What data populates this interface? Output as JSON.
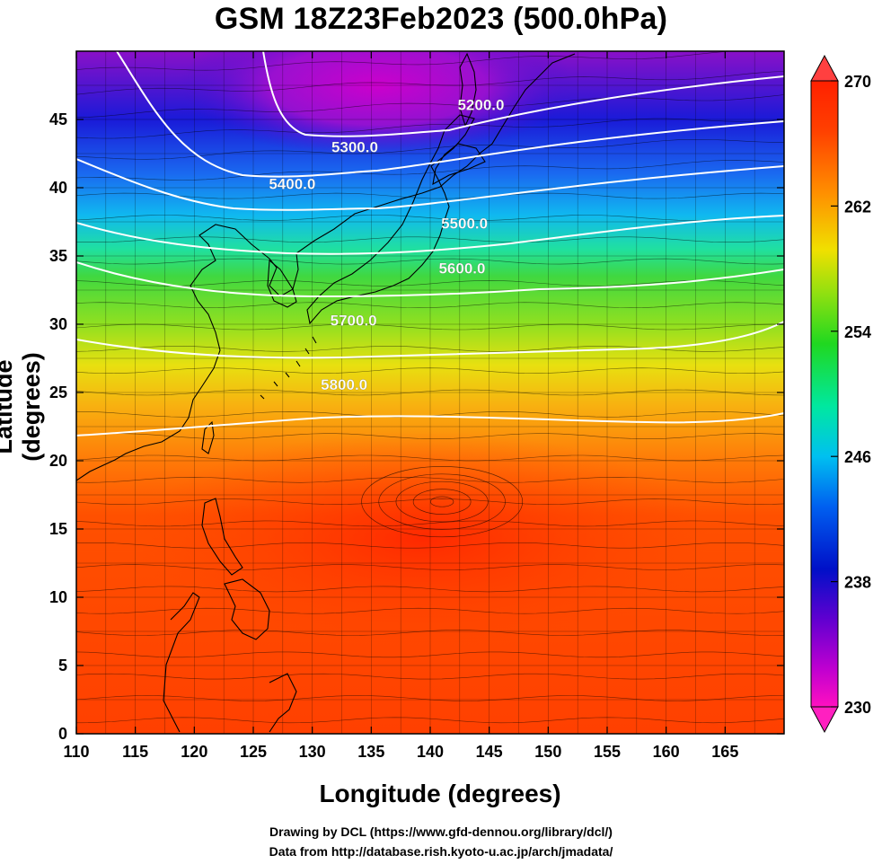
{
  "title": "GSM 18Z23Feb2023 (500.0hPa)",
  "axes": {
    "xlabel": "Longitude (degrees)",
    "ylabel": "Latitude  (degrees)",
    "xlim": [
      110,
      170
    ],
    "ylim": [
      0,
      50
    ],
    "xticks": [
      110,
      115,
      120,
      125,
      130,
      135,
      140,
      145,
      150,
      155,
      160,
      165
    ],
    "yticks": [
      0,
      5,
      10,
      15,
      20,
      25,
      30,
      35,
      40,
      45
    ]
  },
  "colorbar": {
    "min": 230,
    "max": 270,
    "labels": [
      230,
      238,
      246,
      254,
      262,
      270
    ]
  },
  "contours": [
    {
      "label": "5200.0",
      "label_lon": 144.3,
      "label_lat": 46.0
    },
    {
      "label": "5300.0",
      "label_lon": 133.6,
      "label_lat": 42.9
    },
    {
      "label": "5400.0",
      "label_lon": 128.3,
      "label_lat": 40.2
    },
    {
      "label": "5500.0",
      "label_lon": 142.9,
      "label_lat": 37.3
    },
    {
      "label": "5600.0",
      "label_lon": 142.7,
      "label_lat": 34.0
    },
    {
      "label": "5700.0",
      "label_lon": 133.5,
      "label_lat": 30.2
    },
    {
      "label": "5800.0",
      "label_lon": 132.7,
      "label_lat": 25.5
    }
  ],
  "credits": {
    "line1": "Drawing by DCL (https://www.gfd-dennou.org/library/dcl/)",
    "line2": "Data from http://database.rish.kyoto-u.ac.jp/arch/jmadata/"
  },
  "colors": {
    "cold": "#d000d0",
    "warm": "#ff3000",
    "contour": "#ffffff",
    "streamline": "#000000"
  }
}
